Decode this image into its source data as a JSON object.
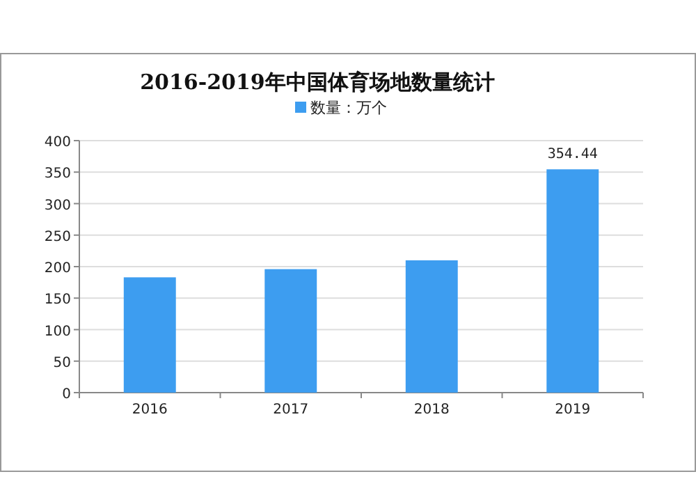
{
  "chart_data": {
    "type": "bar",
    "title": "2016-2019年中国体育场地数量统计",
    "categories": [
      "2016",
      "2017",
      "2018",
      "2019"
    ],
    "series": [
      {
        "name": "数量：万个",
        "color": "#3d9df0",
        "values": [
          183,
          196,
          210,
          354.44
        ],
        "value_labels": [
          null,
          null,
          null,
          "354.44"
        ]
      }
    ],
    "ylim": [
      0,
      400
    ],
    "yticks": [
      0,
      50,
      100,
      150,
      200,
      250,
      300,
      350,
      400
    ],
    "grid": "y",
    "legend": "top"
  }
}
